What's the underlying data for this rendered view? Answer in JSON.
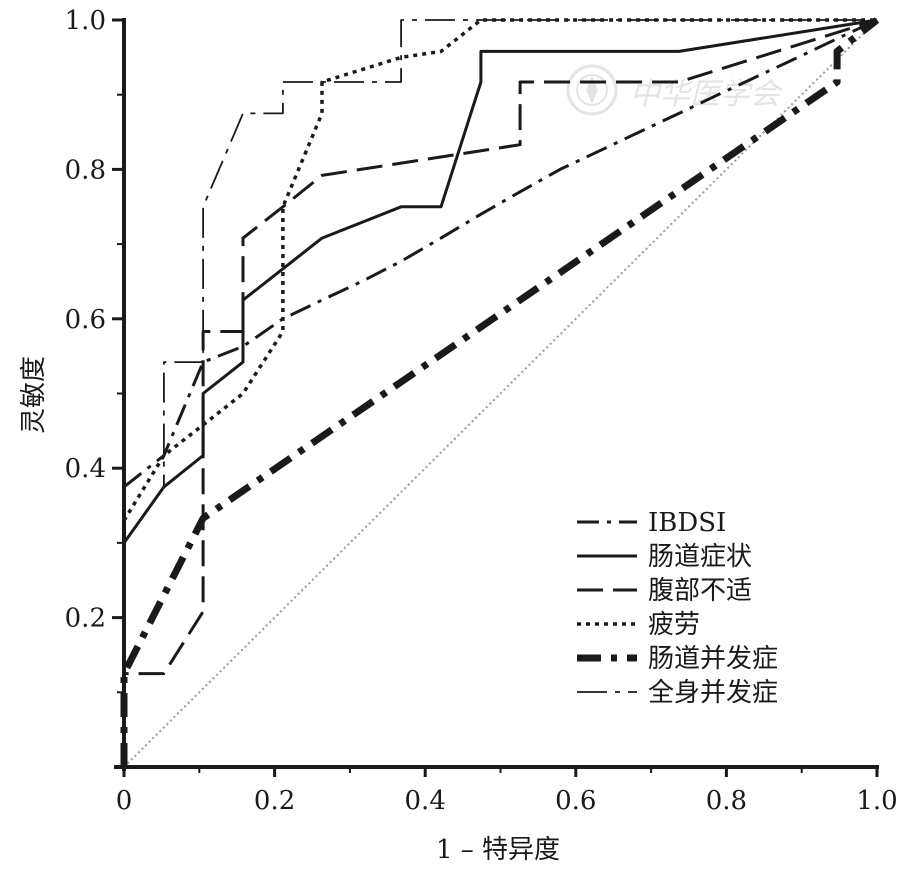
{
  "chart_data": {
    "type": "line",
    "title": "",
    "xlabel": "1 – 特异度",
    "ylabel": "灵敏度",
    "xlim": [
      0,
      1
    ],
    "ylim": [
      0,
      1
    ],
    "x_ticks": [
      0,
      0.2,
      0.4,
      0.6,
      0.8,
      1.0
    ],
    "x_tick_labels": [
      "0",
      "0.2",
      "0.4",
      "0.6",
      "0.8",
      "1.0"
    ],
    "y_ticks": [
      0.2,
      0.4,
      0.6,
      0.8,
      1.0
    ],
    "y_tick_labels": [
      "0.2",
      "0.4",
      "0.6",
      "0.8",
      "1.0"
    ],
    "grid": false,
    "legend_position": "bottom-right",
    "reference_line": {
      "x": [
        0,
        1
      ],
      "y": [
        0,
        1
      ],
      "color": "#9a9a9a",
      "style": "dotted"
    },
    "series": [
      {
        "name": "IBDSI",
        "style": "dash-dot",
        "x": [
          0,
          0.053,
          0.105,
          0.158,
          0.211,
          0.263,
          0.316,
          0.368,
          0.421,
          0.474,
          0.526,
          0.579,
          0.632,
          0.684,
          0.737,
          0.789,
          0.842,
          0.895,
          0.947,
          1.0
        ],
        "y": [
          0.375,
          0.417,
          0.542,
          0.563,
          0.6,
          0.625,
          0.65,
          0.677,
          0.708,
          0.74,
          0.77,
          0.8,
          0.825,
          0.85,
          0.875,
          0.9,
          0.925,
          0.95,
          0.975,
          1.0
        ]
      },
      {
        "name": "肠道症状",
        "style": "solid",
        "x": [
          0,
          0,
          0.053,
          0.105,
          0.105,
          0.158,
          0.158,
          0.211,
          0.263,
          0.368,
          0.421,
          0.474,
          0.474,
          0.737,
          1.0
        ],
        "y": [
          0.29,
          0.3,
          0.375,
          0.417,
          0.5,
          0.542,
          0.625,
          0.667,
          0.708,
          0.75,
          0.75,
          0.917,
          0.958,
          0.958,
          1.0
        ]
      },
      {
        "name": "腹部不适",
        "style": "long-dash",
        "x": [
          0,
          0,
          0.053,
          0.105,
          0.105,
          0.158,
          0.158,
          0.211,
          0.263,
          0.526,
          0.526,
          0.737,
          1.0
        ],
        "y": [
          0,
          0.125,
          0.125,
          0.208,
          0.583,
          0.583,
          0.708,
          0.75,
          0.792,
          0.833,
          0.917,
          0.917,
          1.0
        ]
      },
      {
        "name": "疲劳",
        "style": "dotted",
        "x": [
          0,
          0.053,
          0.105,
          0.158,
          0.211,
          0.211,
          0.263,
          0.263,
          0.368,
          0.421,
          0.474,
          1.0
        ],
        "y": [
          0.33,
          0.417,
          0.458,
          0.5,
          0.583,
          0.75,
          0.875,
          0.917,
          0.95,
          0.958,
          1.0,
          1.0
        ]
      },
      {
        "name": "肠道并发症",
        "style": "heavy-dash-dot",
        "x": [
          0,
          0,
          0.105,
          0.105,
          0.947,
          0.947,
          1.0
        ],
        "y": [
          0,
          0.125,
          0.333,
          0.333,
          0.917,
          0.958,
          1.0
        ]
      },
      {
        "name": "全身并发症",
        "style": "long-dash-dot",
        "x": [
          0,
          0.053,
          0.053,
          0.105,
          0.105,
          0.158,
          0.158,
          0.211,
          0.211,
          0.368,
          0.368,
          0.474,
          1.0
        ],
        "y": [
          0.3,
          0.375,
          0.542,
          0.542,
          0.75,
          0.875,
          0.875,
          0.875,
          0.917,
          0.917,
          1.0,
          1.0,
          1.0
        ]
      }
    ]
  },
  "watermark": {
    "text": "中华医学会",
    "seal": "seal-icon"
  }
}
